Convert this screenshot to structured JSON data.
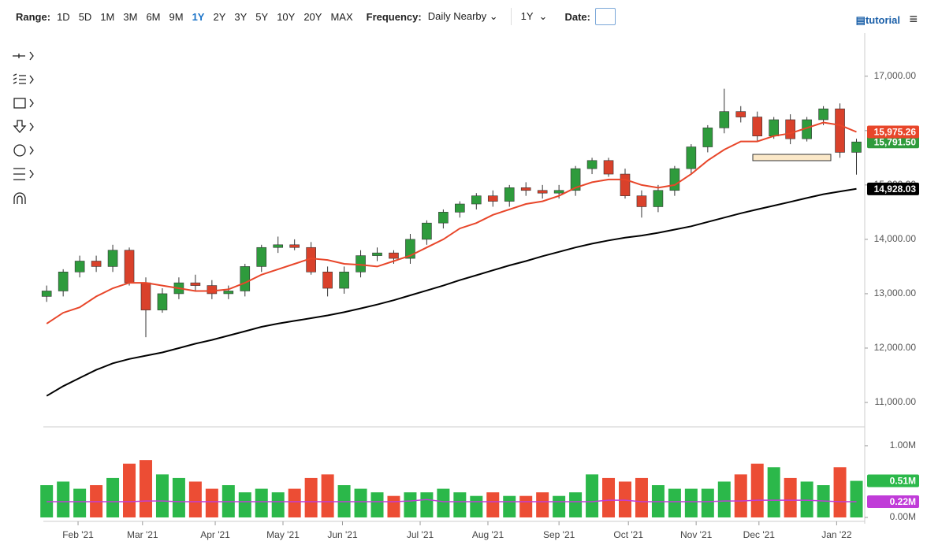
{
  "toolbar": {
    "range_label": "Range:",
    "ranges": [
      "1D",
      "5D",
      "1M",
      "3M",
      "6M",
      "9M",
      "1Y",
      "2Y",
      "3Y",
      "5Y",
      "10Y",
      "20Y",
      "MAX"
    ],
    "frequency_label": "Frequency:",
    "frequency": "Daily Nearby",
    "period": "1Y",
    "date_label": "Date:",
    "tutorial": "tutorial"
  },
  "chart_data": [
    {
      "type": "candlestick",
      "up_color": "#2e9b3c",
      "down_color": "#d9412b",
      "open": [
        12950,
        13050,
        13400,
        13600,
        13500,
        13800,
        13200,
        12700,
        13000,
        13200,
        13150,
        13000,
        13050,
        13500,
        13850,
        13900,
        13850,
        13400,
        13100,
        13400,
        13700,
        13750,
        13650,
        14000,
        14300,
        14500,
        14650,
        14800,
        14700,
        14950,
        14900,
        14850,
        14900,
        15300,
        15450,
        15200,
        14800,
        14600,
        14900,
        15300,
        15700,
        16050,
        16350,
        16250,
        15900,
        16200,
        15850,
        16200,
        16400,
        15600
      ],
      "high": [
        13150,
        13450,
        13700,
        13700,
        13900,
        13850,
        13300,
        13100,
        13300,
        13350,
        13250,
        13150,
        13550,
        13900,
        14050,
        14000,
        13950,
        13500,
        13500,
        13800,
        13850,
        13800,
        14100,
        14350,
        14550,
        14700,
        14850,
        14900,
        15000,
        15050,
        15000,
        15000,
        15350,
        15500,
        15500,
        15300,
        14900,
        15000,
        15350,
        15750,
        16100,
        16770,
        16450,
        16350,
        16250,
        16300,
        16250,
        16450,
        16500,
        15850
      ],
      "low": [
        12850,
        12950,
        13300,
        13400,
        13400,
        13150,
        12200,
        12650,
        12900,
        13050,
        12900,
        12900,
        12950,
        13400,
        13750,
        13800,
        13350,
        12950,
        13000,
        13300,
        13600,
        13550,
        13550,
        13900,
        14200,
        14400,
        14550,
        14600,
        14600,
        14800,
        14750,
        14750,
        14800,
        15200,
        15150,
        14750,
        14400,
        14500,
        14800,
        15200,
        15600,
        15950,
        16150,
        15800,
        15850,
        15750,
        15800,
        16100,
        15500,
        15190
      ],
      "close": [
        13050,
        13400,
        13600,
        13500,
        13800,
        13200,
        12700,
        13000,
        13200,
        13150,
        13000,
        13050,
        13500,
        13850,
        13900,
        13850,
        13400,
        13100,
        13400,
        13700,
        13750,
        13650,
        14000,
        14300,
        14500,
        14650,
        14800,
        14700,
        14950,
        14900,
        14850,
        14900,
        15300,
        15450,
        15200,
        14800,
        14600,
        14900,
        15300,
        15700,
        16050,
        16350,
        16250,
        15900,
        16200,
        15850,
        16200,
        16400,
        15600,
        15791.5
      ],
      "close_label": "15,791.50",
      "overlays": [
        {
          "color": "#e8462a",
          "label": "15,975.26",
          "values": [
            12450,
            12650,
            12750,
            12950,
            13100,
            13200,
            13200,
            13150,
            13100,
            13050,
            13050,
            13080,
            13200,
            13350,
            13450,
            13550,
            13650,
            13620,
            13550,
            13530,
            13500,
            13600,
            13700,
            13850,
            14000,
            14200,
            14300,
            14450,
            14550,
            14650,
            14700,
            14800,
            14950,
            15050,
            15100,
            15100,
            15000,
            14950,
            15000,
            15200,
            15450,
            15650,
            15800,
            15800,
            15900,
            15950,
            16050,
            16150,
            16100,
            15975.26
          ]
        },
        {
          "color": "#000000",
          "label": "14,928.03",
          "values": [
            11120,
            11300,
            11450,
            11600,
            11720,
            11800,
            11860,
            11920,
            12000,
            12080,
            12150,
            12230,
            12310,
            12390,
            12450,
            12500,
            12550,
            12600,
            12660,
            12730,
            12800,
            12880,
            12970,
            13060,
            13150,
            13250,
            13340,
            13430,
            13520,
            13600,
            13690,
            13770,
            13850,
            13920,
            13980,
            14030,
            14070,
            14120,
            14180,
            14240,
            14320,
            14400,
            14480,
            14550,
            14620,
            14690,
            14760,
            14830,
            14880,
            14928.03
          ]
        }
      ],
      "xlim": [
        -0.2,
        49.5
      ],
      "xticks": [
        {
          "value": 1.9,
          "label": "Feb '21"
        },
        {
          "value": 5.8,
          "label": "Mar '21"
        },
        {
          "value": 10.2,
          "label": "Apr '21"
        },
        {
          "value": 14.3,
          "label": "May '21"
        },
        {
          "value": 17.9,
          "label": "Jun '21"
        },
        {
          "value": 22.6,
          "label": "Jul '21"
        },
        {
          "value": 26.7,
          "label": "Aug '21"
        },
        {
          "value": 31,
          "label": "Sep '21"
        },
        {
          "value": 35.2,
          "label": "Oct '21"
        },
        {
          "value": 39.3,
          "label": "Nov '21"
        },
        {
          "value": 43.1,
          "label": "Dec '21"
        },
        {
          "value": 47.8,
          "label": "Jan '22"
        }
      ],
      "ylim": [
        10580,
        17750
      ],
      "yticks": [
        {
          "value": 11000,
          "label": "11,000.00"
        },
        {
          "value": 12000,
          "label": "12,000.00"
        },
        {
          "value": 13000,
          "label": "13,000.00"
        },
        {
          "value": 14000,
          "label": "14,000.00"
        },
        {
          "value": 15000,
          "label": "15,000.00"
        },
        {
          "value": 16000,
          "label": "16,000.00"
        },
        {
          "value": 17000,
          "label": "17,000.00"
        }
      ]
    },
    {
      "type": "bar",
      "up_color": "#2bb84a",
      "down_color": "#ec4d34",
      "values": [
        0.45,
        0.5,
        0.4,
        0.45,
        0.55,
        0.75,
        0.8,
        0.6,
        0.55,
        0.5,
        0.4,
        0.45,
        0.35,
        0.4,
        0.35,
        0.4,
        0.55,
        0.6,
        0.45,
        0.4,
        0.35,
        0.3,
        0.35,
        0.35,
        0.4,
        0.35,
        0.3,
        0.35,
        0.3,
        0.3,
        0.35,
        0.3,
        0.35,
        0.6,
        0.55,
        0.5,
        0.55,
        0.45,
        0.4,
        0.4,
        0.4,
        0.5,
        0.6,
        0.75,
        0.7,
        0.55,
        0.5,
        0.45,
        0.7,
        0.51
      ],
      "value_label": "0.51M",
      "overlays": [
        {
          "color": "#c03cd8",
          "label": "0.22M",
          "values": [
            0.22,
            0.22,
            0.22,
            0.22,
            0.22,
            0.22,
            0.23,
            0.23,
            0.22,
            0.22,
            0.22,
            0.22,
            0.22,
            0.22,
            0.22,
            0.22,
            0.22,
            0.22,
            0.22,
            0.22,
            0.22,
            0.22,
            0.23,
            0.25,
            0.22,
            0.22,
            0.22,
            0.22,
            0.22,
            0.22,
            0.22,
            0.22,
            0.22,
            0.22,
            0.24,
            0.24,
            0.22,
            0.22,
            0.22,
            0.22,
            0.22,
            0.23,
            0.23,
            0.24,
            0.24,
            0.24,
            0.24,
            0.23,
            0.22,
            0.22
          ]
        }
      ],
      "ylim": [
        0,
        1.23
      ],
      "yticks": [
        {
          "value": 0,
          "label": "0.00M"
        },
        {
          "value": 1,
          "label": "1.00M"
        }
      ]
    }
  ]
}
